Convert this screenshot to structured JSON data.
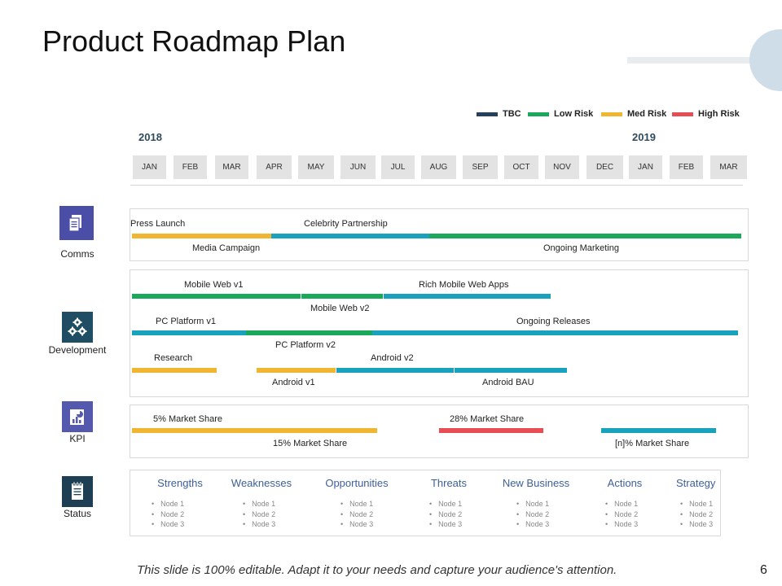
{
  "title": "Product Roadmap Plan",
  "legend": [
    {
      "label": "TBC",
      "color": "#24405a"
    },
    {
      "label": "Low Risk",
      "color": "#1aa85a"
    },
    {
      "label": "Med Risk",
      "color": "#f0b531"
    },
    {
      "label": "High Risk",
      "color": "#e84d55"
    }
  ],
  "years": [
    "2018",
    "2019"
  ],
  "months": [
    "JAN",
    "FEB",
    "MAR",
    "APR",
    "MAY",
    "JUN",
    "JUL",
    "AUG",
    "SEP",
    "OCT",
    "NOV",
    "DEC",
    "JAN",
    "FEB",
    "MAR"
  ],
  "categories": {
    "comms": "Comms",
    "development": "Development",
    "kpi": "KPI",
    "status": "Status"
  },
  "comms": {
    "press_launch": "Press Launch",
    "celebrity_partnership": "Celebrity Partnership",
    "media_campaign": "Media Campaign",
    "ongoing_marketing": "Ongoing Marketing"
  },
  "development": {
    "mobile_web_v1": "Mobile Web v1",
    "rich_mobile_web_apps": "Rich Mobile Web Apps",
    "mobile_web_v2": "Mobile Web v2",
    "pc_platform_v1": "PC Platform v1",
    "ongoing_releases": "Ongoing Releases",
    "pc_platform_v2": "PC Platform v2",
    "research": "Research",
    "android_v2": "Android v2",
    "android_v1": "Android v1",
    "android_bau": "Android BAU"
  },
  "kpi": {
    "share_5": "5% Market Share",
    "share_28": "28% Market Share",
    "share_15": "15% Market Share",
    "share_n": "[n]% Market Share"
  },
  "status": [
    {
      "heading": "Strengths",
      "nodes": [
        "Node 1",
        "Node 2",
        "Node 3"
      ]
    },
    {
      "heading": "Weaknesses",
      "nodes": [
        "Node 1",
        "Node 2",
        "Node 3"
      ]
    },
    {
      "heading": "Opportunities",
      "nodes": [
        "Node 1",
        "Node 2",
        "Node 3"
      ]
    },
    {
      "heading": "Threats",
      "nodes": [
        "Node 1",
        "Node 2",
        "Node 3"
      ]
    },
    {
      "heading": "New Business",
      "nodes": [
        "Node 1",
        "Node 2",
        "Node 3"
      ]
    },
    {
      "heading": "Actions",
      "nodes": [
        "Node 1",
        "Node 2",
        "Node 3"
      ]
    },
    {
      "heading": "Strategy",
      "nodes": [
        "Node 1",
        "Node 2",
        "Node 3"
      ]
    }
  ],
  "footer": "This slide is 100% editable. Adapt it to your needs and capture your audience's attention.",
  "page_number": "6",
  "colors": {
    "tbc": "#24405a",
    "low_risk": "#1aa85a",
    "med_risk": "#f0b531",
    "high_risk": "#e84d55",
    "teal": "#18a2bd",
    "comms_icon": "#4b4ea6",
    "development_icon": "#1f4d63",
    "kpi_icon": "#5459ad",
    "status_icon": "#1e3e53"
  },
  "icons": {
    "comms": "document-icon",
    "development": "gears-icon",
    "kpi": "chart-report-icon",
    "status": "notepad-icon"
  }
}
